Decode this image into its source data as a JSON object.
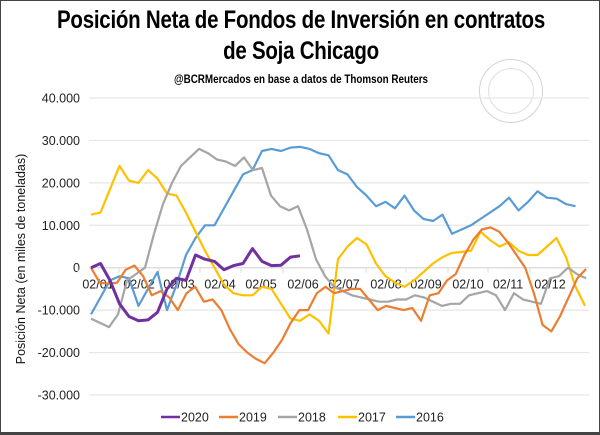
{
  "chart_data": {
    "type": "line",
    "title": "Posición Neta de Fondos de Inversión en contratos de Soja Chicago",
    "subtitle": "@BCRMercados en base a datos de Thomson Reuters",
    "xlabel": "",
    "ylabel": "Posición Neta (en miles de toneladas)",
    "ylim": [
      -30000,
      40000
    ],
    "yticks": [
      40000,
      30000,
      20000,
      10000,
      0,
      -10000,
      -20000,
      -30000
    ],
    "ytick_labels": [
      "40.000",
      "30.000",
      "20.000",
      "10.000",
      "0",
      "-10.000",
      "-20.000",
      "-30.000"
    ],
    "x_tick_labels": [
      "02/01",
      "02/02",
      "02/03",
      "02/04",
      "02/05",
      "02/06",
      "02/07",
      "02/08",
      "02/09",
      "02/10",
      "02/11",
      "02/12"
    ],
    "x_unit": "weekly observations (52 weeks)",
    "grid": "horizontal",
    "legend_position": "bottom",
    "watermark": "BOLSA DE COMERCIO DE ROSARIO",
    "series": [
      {
        "name": "2020",
        "color": "#7030a0",
        "values": [
          0,
          1000,
          -3000,
          -8500,
          -11500,
          -12500,
          -12300,
          -10500,
          -5000,
          -2500,
          -3000,
          3000,
          2000,
          1500,
          -500,
          500,
          1000,
          4500,
          1500,
          500,
          600,
          2500,
          2800
        ]
      },
      {
        "name": "2019",
        "color": "#ed7d31",
        "values": [
          0,
          -3500,
          -3800,
          -3500,
          -500,
          500,
          -2000,
          -6500,
          -5500,
          -7000,
          -10000,
          -6000,
          -4500,
          -8000,
          -7500,
          -10000,
          -14500,
          -18000,
          -20000,
          -21500,
          -22500,
          -20000,
          -17000,
          -13000,
          -10000,
          -10000,
          -6000,
          -4500,
          -6000,
          -5500,
          -5000,
          -5000,
          -7500,
          -10000,
          -9000,
          -9500,
          -10000,
          -9500,
          -12500,
          -6500,
          -6000,
          -3000,
          -1500,
          3000,
          6500,
          9000,
          9500,
          8500,
          6000,
          3000,
          0,
          -6000,
          -13500,
          -15000,
          -11500,
          -7000,
          -2500,
          -300
        ]
      },
      {
        "name": "2018",
        "color": "#a5a5a5",
        "values": [
          -12000,
          -13000,
          -14000,
          -11000,
          -3000,
          -1500,
          0,
          8000,
          15000,
          20000,
          24000,
          26000,
          28000,
          27000,
          25500,
          25000,
          24000,
          26000,
          23000,
          23500,
          17000,
          14500,
          13500,
          14500,
          9000,
          2000,
          -2000,
          -4500,
          -5500,
          -6500,
          -7000,
          -7500,
          -8000,
          -8000,
          -7500,
          -7500,
          -6500,
          -7000,
          -8000,
          -9000,
          -8500,
          -8500,
          -6500,
          -6000,
          -5500,
          -6500,
          -10000,
          -6000,
          -7500,
          -8000,
          -8500,
          -2500,
          -2000,
          0,
          -1500,
          -2500
        ]
      },
      {
        "name": "2017",
        "color": "#ffc000",
        "values": [
          12500,
          13000,
          18500,
          24000,
          20500,
          20000,
          23000,
          21000,
          17500,
          17000,
          13000,
          8500,
          4000,
          0,
          -4000,
          -6000,
          -6500,
          -6500,
          -4500,
          -5000,
          -8500,
          -12000,
          -12500,
          -11000,
          -12500,
          -15500,
          2000,
          5000,
          7000,
          5500,
          1000,
          -2000,
          -3500,
          -4500,
          -3000,
          -1000,
          1000,
          2500,
          3500,
          3700,
          4000,
          8500,
          6500,
          5000,
          6000,
          4000,
          3000,
          3000,
          5000,
          7000,
          2500,
          -4500,
          -9000
        ]
      },
      {
        "name": "2016",
        "color": "#5b9bd5",
        "values": [
          -11000,
          -7000,
          -3000,
          -2000,
          -2500,
          -9000,
          -5000,
          -1000,
          -10000,
          -4000,
          3000,
          7000,
          10000,
          10000,
          14000,
          18000,
          22000,
          23000,
          27500,
          28000,
          27500,
          28300,
          28500,
          28000,
          27000,
          26500,
          23000,
          22000,
          19000,
          17000,
          14500,
          15500,
          14000,
          17000,
          13500,
          11500,
          11000,
          12500,
          8000,
          9000,
          10000,
          11500,
          13000,
          14500,
          16500,
          13500,
          15500,
          18000,
          16500,
          16300,
          15000,
          14500
        ]
      }
    ]
  }
}
